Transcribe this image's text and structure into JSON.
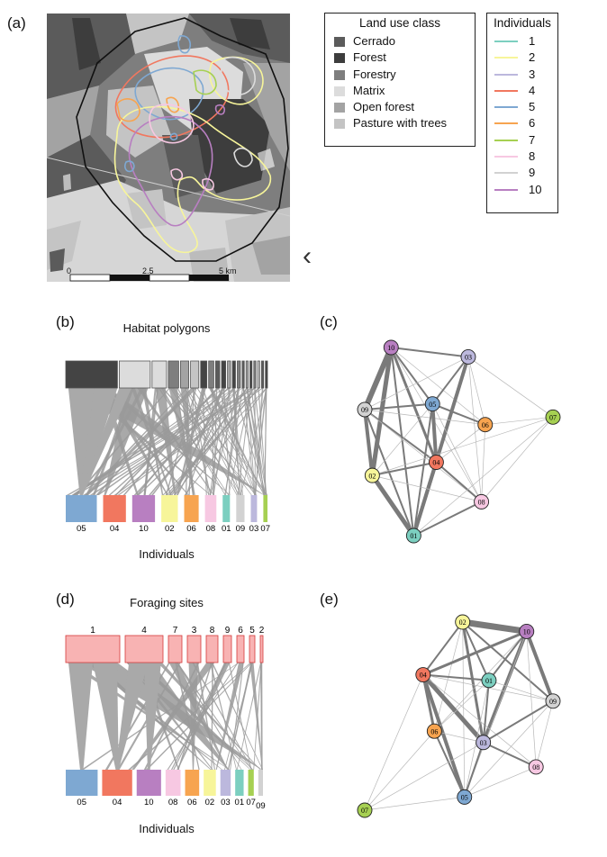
{
  "panels": {
    "a": {
      "label": "(a)"
    },
    "b": {
      "label": "(b)",
      "title": "Habitat polygons",
      "xlabel": "Individuals"
    },
    "c": {
      "label": "(c)"
    },
    "d": {
      "label": "(d)",
      "title": "Foraging sites",
      "xlabel": "Individuals"
    },
    "e": {
      "label": "(e)"
    }
  },
  "map": {
    "scale_labels": [
      "0",
      "2.5",
      "5 km"
    ],
    "nav_glyph": "‹"
  },
  "landuse_legend": {
    "title": "Land use class",
    "items": [
      {
        "label": "Cerrado",
        "color": "#5b5b5b"
      },
      {
        "label": "Forest",
        "color": "#3d3d3d"
      },
      {
        "label": "Forestry",
        "color": "#7e7e7e"
      },
      {
        "label": "Matrix",
        "color": "#dcdcdc"
      },
      {
        "label": "Open forest",
        "color": "#a3a3a3"
      },
      {
        "label": "Pasture with trees",
        "color": "#c4c4c4"
      }
    ]
  },
  "individuals_legend": {
    "title": "Individuals",
    "items": [
      {
        "label": "1",
        "color": "#7ccfc0"
      },
      {
        "label": "2",
        "color": "#f7f59a"
      },
      {
        "label": "3",
        "color": "#bcb8dd"
      },
      {
        "label": "4",
        "color": "#f1775f"
      },
      {
        "label": "5",
        "color": "#7ea8d2"
      },
      {
        "label": "6",
        "color": "#f7a450"
      },
      {
        "label": "7",
        "color": "#a6d052"
      },
      {
        "label": "8",
        "color": "#f7c8e2"
      },
      {
        "label": "9",
        "color": "#d2d2d2"
      },
      {
        "label": "10",
        "color": "#b87fc1"
      }
    ]
  },
  "chart_data": [
    {
      "id": "b",
      "type": "bipartite",
      "top_label": "Habitat polygons",
      "bottom_label": "Individuals",
      "top_nodes": [
        {
          "w": 50,
          "color": "#444444"
        },
        {
          "w": 30,
          "color": "#dcdcdc"
        },
        {
          "w": 14,
          "color": "#dcdcdc"
        },
        {
          "w": 10,
          "color": "#7e7e7e"
        },
        {
          "w": 8,
          "color": "#a3a3a3"
        },
        {
          "w": 8,
          "color": "#c4c4c4"
        },
        {
          "w": 6,
          "color": "#444444"
        },
        {
          "w": 5,
          "color": "#7e7e7e"
        },
        {
          "w": 4,
          "color": "#5b5b5b"
        },
        {
          "w": 4,
          "color": "#444444"
        },
        {
          "w": 3,
          "color": "#a3a3a3"
        },
        {
          "w": 3,
          "color": "#444444"
        },
        {
          "w": 3,
          "color": "#7e7e7e"
        },
        {
          "w": 2,
          "color": "#5b5b5b"
        },
        {
          "w": 2,
          "color": "#a3a3a3"
        },
        {
          "w": 2,
          "color": "#444444"
        },
        {
          "w": 2,
          "color": "#7e7e7e"
        },
        {
          "w": 2,
          "color": "#c4c4c4"
        },
        {
          "w": 2,
          "color": "#5b5b5b"
        },
        {
          "w": 2,
          "color": "#444444"
        }
      ],
      "bottom_nodes": [
        {
          "label": "05",
          "w": 30,
          "color": "#7ea8d2"
        },
        {
          "label": "04",
          "w": 22,
          "color": "#f1775f"
        },
        {
          "label": "10",
          "w": 22,
          "color": "#b87fc1"
        },
        {
          "label": "02",
          "w": 16,
          "color": "#f7f59a"
        },
        {
          "label": "06",
          "w": 14,
          "color": "#f7a450"
        },
        {
          "label": "08",
          "w": 11,
          "color": "#f7c8e2"
        },
        {
          "label": "01",
          "w": 7,
          "color": "#7ccfc0"
        },
        {
          "label": "09",
          "w": 8,
          "color": "#d2d2d2"
        },
        {
          "label": "03",
          "w": 6,
          "color": "#bcb8dd"
        },
        {
          "label": "07",
          "w": 4,
          "color": "#a6d052"
        }
      ]
    },
    {
      "id": "c",
      "type": "network",
      "nodes": [
        {
          "label": "10",
          "x": 0.14,
          "y": 0.0,
          "color": "#b87fc1"
        },
        {
          "label": "03",
          "x": 0.55,
          "y": 0.05,
          "color": "#bcb8dd"
        },
        {
          "label": "09",
          "x": 0.0,
          "y": 0.33,
          "color": "#d2d2d2"
        },
        {
          "label": "05",
          "x": 0.36,
          "y": 0.3,
          "color": "#7ea8d2"
        },
        {
          "label": "06",
          "x": 0.64,
          "y": 0.41,
          "color": "#f7a450"
        },
        {
          "label": "07",
          "x": 1.0,
          "y": 0.37,
          "color": "#a6d052"
        },
        {
          "label": "04",
          "x": 0.38,
          "y": 0.61,
          "color": "#f1775f"
        },
        {
          "label": "02",
          "x": 0.04,
          "y": 0.68,
          "color": "#f7f59a"
        },
        {
          "label": "08",
          "x": 0.62,
          "y": 0.82,
          "color": "#f7c8e2"
        },
        {
          "label": "01",
          "x": 0.26,
          "y": 1.0,
          "color": "#7ccfc0"
        }
      ],
      "edges": [
        [
          "10",
          "09",
          6
        ],
        [
          "10",
          "02",
          5
        ],
        [
          "10",
          "03",
          2
        ],
        [
          "10",
          "04",
          3
        ],
        [
          "10",
          "05",
          2
        ],
        [
          "10",
          "06",
          1
        ],
        [
          "10",
          "01",
          2
        ],
        [
          "10",
          "08",
          1
        ],
        [
          "03",
          "05",
          2
        ],
        [
          "03",
          "01",
          4
        ],
        [
          "03",
          "04",
          2
        ],
        [
          "03",
          "09",
          1
        ],
        [
          "03",
          "07",
          1
        ],
        [
          "03",
          "06",
          1
        ],
        [
          "03",
          "08",
          1
        ],
        [
          "09",
          "02",
          4
        ],
        [
          "09",
          "05",
          2
        ],
        [
          "09",
          "04",
          2
        ],
        [
          "09",
          "01",
          2
        ],
        [
          "09",
          "06",
          1
        ],
        [
          "09",
          "08",
          1
        ],
        [
          "05",
          "04",
          4
        ],
        [
          "05",
          "06",
          2
        ],
        [
          "05",
          "01",
          2
        ],
        [
          "05",
          "08",
          1
        ],
        [
          "05",
          "02",
          1
        ],
        [
          "04",
          "01",
          4
        ],
        [
          "04",
          "02",
          2
        ],
        [
          "04",
          "08",
          2
        ],
        [
          "04",
          "06",
          1
        ],
        [
          "02",
          "01",
          5
        ],
        [
          "02",
          "08",
          1
        ],
        [
          "06",
          "08",
          1
        ],
        [
          "06",
          "07",
          1
        ],
        [
          "01",
          "08",
          2
        ],
        [
          "08",
          "07",
          1
        ],
        [
          "01",
          "07",
          1
        ],
        [
          "02",
          "07",
          1
        ]
      ]
    },
    {
      "id": "d",
      "type": "bipartite",
      "top_label": "Foraging sites",
      "bottom_label": "Individuals",
      "top_nodes": [
        {
          "label": "1",
          "w": 60,
          "color": "#f8b3b3"
        },
        {
          "label": "4",
          "w": 42,
          "color": "#f8b3b3"
        },
        {
          "label": "7",
          "w": 15,
          "color": "#f8b3b3"
        },
        {
          "label": "3",
          "w": 15,
          "color": "#f8b3b3"
        },
        {
          "label": "8",
          "w": 13,
          "color": "#f8b3b3"
        },
        {
          "label": "9",
          "w": 9,
          "color": "#f8b3b3"
        },
        {
          "label": "6",
          "w": 8,
          "color": "#f8b3b3"
        },
        {
          "label": "5",
          "w": 6,
          "color": "#f8b3b3"
        },
        {
          "label": "2",
          "w": 3,
          "color": "#f8b3b3"
        }
      ],
      "bottom_nodes": [
        {
          "label": "05",
          "w": 34,
          "color": "#7ea8d2"
        },
        {
          "label": "04",
          "w": 32,
          "color": "#f1775f"
        },
        {
          "label": "10",
          "w": 26,
          "color": "#b87fc1"
        },
        {
          "label": "08",
          "w": 16,
          "color": "#f7c8e2"
        },
        {
          "label": "06",
          "w": 15,
          "color": "#f7a450"
        },
        {
          "label": "02",
          "w": 13,
          "color": "#f7f59a"
        },
        {
          "label": "03",
          "w": 11,
          "color": "#bcb8dd"
        },
        {
          "label": "01",
          "w": 9,
          "color": "#7ccfc0"
        },
        {
          "label": "07",
          "w": 6,
          "color": "#a6d052"
        },
        {
          "label": "09",
          "w": 5,
          "color": "#d2d2d2"
        }
      ]
    },
    {
      "id": "e",
      "type": "network",
      "nodes": [
        {
          "label": "02",
          "x": 0.52,
          "y": 0.0,
          "color": "#f7f59a"
        },
        {
          "label": "10",
          "x": 0.86,
          "y": 0.05,
          "color": "#b87fc1"
        },
        {
          "label": "04",
          "x": 0.31,
          "y": 0.28,
          "color": "#f1775f"
        },
        {
          "label": "01",
          "x": 0.66,
          "y": 0.31,
          "color": "#7ccfc0"
        },
        {
          "label": "09",
          "x": 1.0,
          "y": 0.42,
          "color": "#d2d2d2"
        },
        {
          "label": "06",
          "x": 0.37,
          "y": 0.58,
          "color": "#f7a450"
        },
        {
          "label": "03",
          "x": 0.63,
          "y": 0.64,
          "color": "#bcb8dd"
        },
        {
          "label": "08",
          "x": 0.91,
          "y": 0.77,
          "color": "#f7c8e2"
        },
        {
          "label": "05",
          "x": 0.53,
          "y": 0.93,
          "color": "#7ea8d2"
        },
        {
          "label": "07",
          "x": 0.0,
          "y": 1.0,
          "color": "#a6d052"
        }
      ],
      "edges": [
        [
          "02",
          "10",
          7
        ],
        [
          "02",
          "04",
          2
        ],
        [
          "02",
          "01",
          2
        ],
        [
          "02",
          "03",
          3
        ],
        [
          "02",
          "09",
          2
        ],
        [
          "02",
          "06",
          1
        ],
        [
          "02",
          "05",
          1
        ],
        [
          "10",
          "04",
          3
        ],
        [
          "10",
          "01",
          2
        ],
        [
          "10",
          "03",
          4
        ],
        [
          "10",
          "09",
          4
        ],
        [
          "10",
          "06",
          1
        ],
        [
          "10",
          "08",
          1
        ],
        [
          "10",
          "05",
          1
        ],
        [
          "04",
          "01",
          2
        ],
        [
          "04",
          "06",
          3
        ],
        [
          "04",
          "03",
          5
        ],
        [
          "04",
          "05",
          4
        ],
        [
          "04",
          "08",
          1
        ],
        [
          "04",
          "09",
          1
        ],
        [
          "04",
          "07",
          1
        ],
        [
          "01",
          "03",
          2
        ],
        [
          "01",
          "09",
          1
        ],
        [
          "01",
          "06",
          1
        ],
        [
          "01",
          "05",
          1
        ],
        [
          "09",
          "03",
          2
        ],
        [
          "09",
          "08",
          1
        ],
        [
          "09",
          "05",
          1
        ],
        [
          "06",
          "03",
          1
        ],
        [
          "06",
          "05",
          2
        ],
        [
          "03",
          "05",
          2
        ],
        [
          "03",
          "08",
          2
        ],
        [
          "08",
          "05",
          1
        ],
        [
          "05",
          "07",
          1
        ],
        [
          "06",
          "07",
          1
        ],
        [
          "03",
          "07",
          1
        ]
      ]
    }
  ]
}
